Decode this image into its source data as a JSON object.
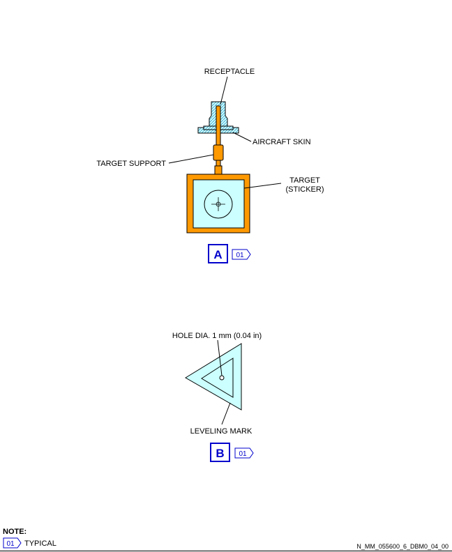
{
  "colors": {
    "orange": "#ff9900",
    "light_cyan": "#ccffff",
    "hatch_blue": "#3399cc",
    "ref_blue": "#0000cc",
    "line": "#000000"
  },
  "view_a": {
    "receptacle": "RECEPTACLE",
    "aircraft_skin": "AIRCRAFT SKIN",
    "target_support": "TARGET SUPPORT",
    "target_line1": "TARGET",
    "target_line2": "(STICKER)",
    "view_letter": "A",
    "ref_code": "01"
  },
  "view_b": {
    "hole": "HOLE DIA. 1 mm (0.04 in)",
    "leveling_mark": "LEVELING MARK",
    "view_letter": "B",
    "ref_code": "01"
  },
  "note": {
    "title": "NOTE:",
    "code": "01",
    "text": "TYPICAL"
  },
  "doc_ref": "N_MM_055600_6_DBM0_04_00"
}
